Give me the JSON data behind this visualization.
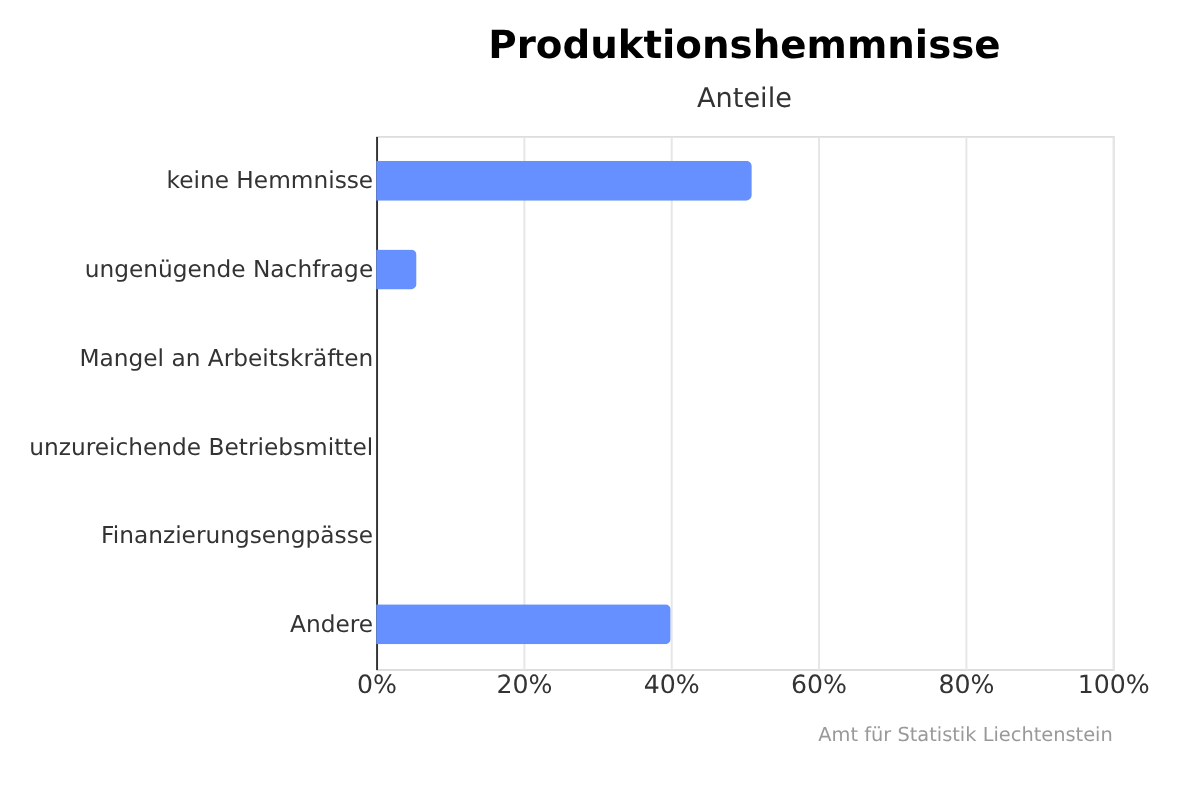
{
  "chart_data": {
    "type": "bar",
    "orientation": "horizontal",
    "title": "Produktionshemmnisse",
    "subtitle": "Anteile",
    "categories": [
      "keine Hemmnisse",
      "ungenügende Nachfrage",
      "Mangel an Arbeitskräften",
      "unzureichende Betriebsmittel",
      "Finanzierungsengpässe",
      "Andere"
    ],
    "values": [
      51,
      5.5,
      0,
      0,
      0,
      40
    ],
    "color": "#6690ff",
    "xlim": [
      0,
      100
    ],
    "xticks": [
      {
        "value": 0,
        "label": "0%"
      },
      {
        "value": 20,
        "label": "20%"
      },
      {
        "value": 40,
        "label": "40%"
      },
      {
        "value": 60,
        "label": "60%"
      },
      {
        "value": 80,
        "label": "80%"
      },
      {
        "value": 100,
        "label": "100%"
      }
    ],
    "grid": "x",
    "annotations": [
      "Amt für Statistik Liechtenstein"
    ]
  }
}
